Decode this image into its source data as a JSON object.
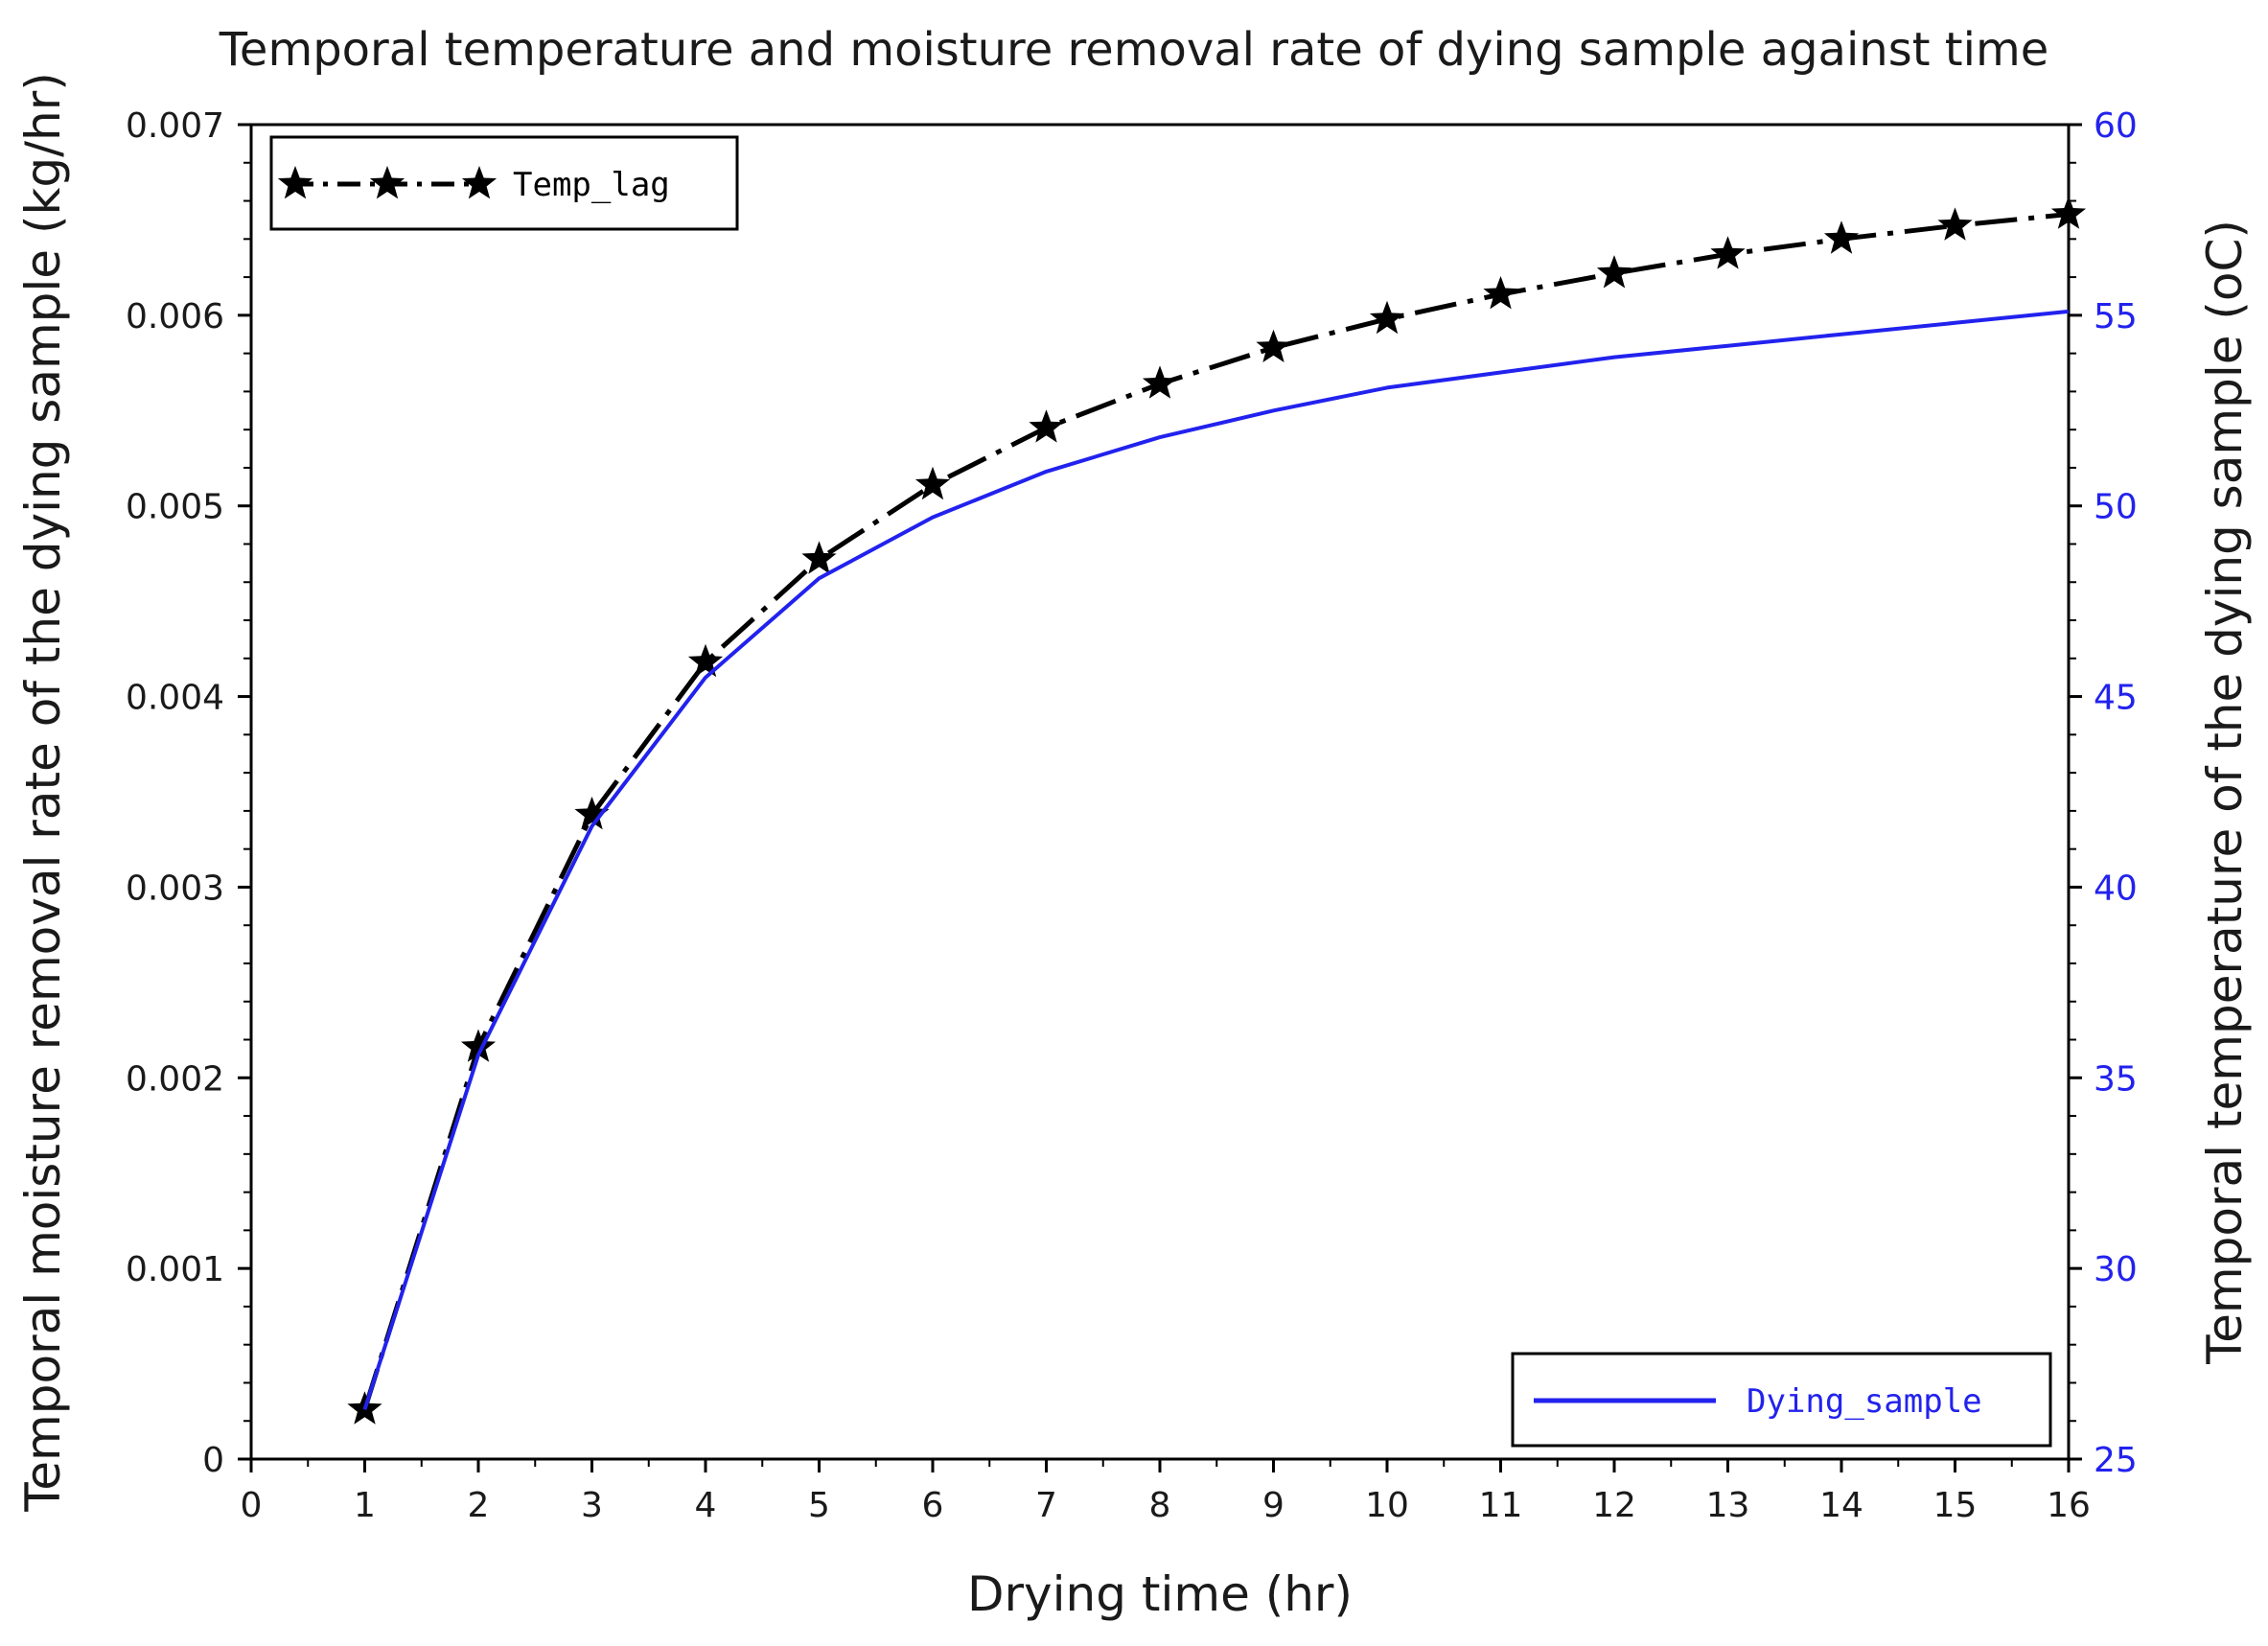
{
  "chart_data": {
    "type": "line",
    "title": "Temporal temperature and moisture removal rate of dying sample against time",
    "xlabel": "Drying time (hr)",
    "ylabel_left": "Temporal moisture removal rate of the dying sample (kg/hr)",
    "ylabel_right": "Temporal temperature of the dying sample (oC)",
    "xlim": [
      0,
      16
    ],
    "ylim_left": [
      0,
      0.007
    ],
    "ylim_right": [
      25,
      60
    ],
    "x_ticks": [
      "0",
      "1",
      "2",
      "3",
      "4",
      "5",
      "6",
      "7",
      "8",
      "9",
      "10",
      "11",
      "12",
      "13",
      "14",
      "15",
      "16"
    ],
    "y_left_ticks": [
      "0",
      "0.001",
      "0.002",
      "0.003",
      "0.004",
      "0.005",
      "0.006",
      "0.007"
    ],
    "y_right_ticks": [
      "25",
      "30",
      "35",
      "40",
      "45",
      "50",
      "55",
      "60"
    ],
    "x": [
      1,
      2,
      3,
      4,
      5,
      6,
      7,
      8,
      9,
      10,
      11,
      12,
      13,
      14,
      15,
      16
    ],
    "series": [
      {
        "name": "Temp_lag",
        "axis": "left",
        "style": "dash-dot with star markers",
        "color": "#000000",
        "values": [
          0.00026,
          0.00216,
          0.00338,
          0.00418,
          0.00472,
          0.00511,
          0.00541,
          0.00564,
          0.00583,
          0.00598,
          0.00611,
          0.00622,
          0.00632,
          0.0064,
          0.00647,
          0.00653
        ]
      },
      {
        "name": "Dying_sample",
        "axis": "right",
        "style": "solid",
        "color": "#2222ee",
        "values": [
          26.3,
          35.6,
          41.6,
          45.5,
          48.1,
          49.7,
          50.9,
          51.8,
          52.5,
          53.1,
          53.5,
          53.9,
          54.2,
          54.5,
          54.8,
          55.1
        ]
      }
    ],
    "legend": [
      {
        "label": "Temp_lag",
        "placement": "top-left"
      },
      {
        "label": "Dying_sample",
        "placement": "bottom-right"
      }
    ]
  }
}
